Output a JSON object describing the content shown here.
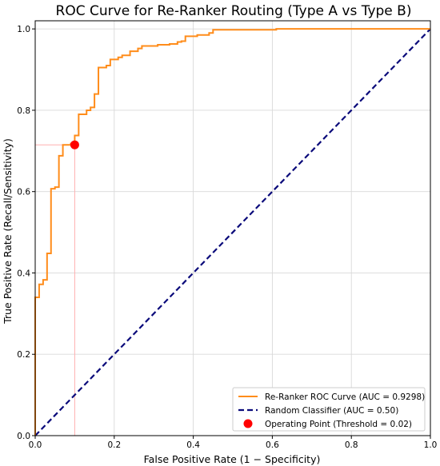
{
  "chart_data": {
    "type": "line",
    "title": "ROC Curve for Re-Ranker Routing (Type A vs Type B)",
    "xlabel": "False Positive Rate (1 − Specificity)",
    "ylabel": "True Positive Rate (Recall/Sensitivity)",
    "xlim": [
      0,
      1
    ],
    "ylim": [
      0,
      1.02
    ],
    "x_ticks": [
      "0.0",
      "0.2",
      "0.4",
      "0.6",
      "0.8",
      "1.0"
    ],
    "y_ticks": [
      "0.0",
      "0.2",
      "0.4",
      "0.6",
      "0.8",
      "1.0"
    ],
    "grid": true,
    "legend_position": "bottom-right",
    "colors": {
      "roc": "#ff8c1a",
      "random": "#0a0a7a",
      "operating_point": "#ff0000",
      "guide": "#ffb0b0",
      "grid": "#d9d9d9"
    },
    "series": [
      {
        "name": "Re-Ranker ROC Curve (AUC = 0.9298)",
        "style": "solid",
        "points": [
          [
            0.0,
            0.0
          ],
          [
            0.0,
            0.34
          ],
          [
            0.01,
            0.34
          ],
          [
            0.01,
            0.372
          ],
          [
            0.02,
            0.372
          ],
          [
            0.02,
            0.383
          ],
          [
            0.03,
            0.383
          ],
          [
            0.03,
            0.448
          ],
          [
            0.04,
            0.448
          ],
          [
            0.04,
            0.607
          ],
          [
            0.05,
            0.607
          ],
          [
            0.05,
            0.611
          ],
          [
            0.06,
            0.611
          ],
          [
            0.06,
            0.688
          ],
          [
            0.07,
            0.688
          ],
          [
            0.07,
            0.715
          ],
          [
            0.09,
            0.715
          ],
          [
            0.09,
            0.718
          ],
          [
            0.1,
            0.718
          ],
          [
            0.1,
            0.738
          ],
          [
            0.11,
            0.738
          ],
          [
            0.11,
            0.79
          ],
          [
            0.13,
            0.79
          ],
          [
            0.13,
            0.8
          ],
          [
            0.14,
            0.8
          ],
          [
            0.14,
            0.807
          ],
          [
            0.15,
            0.807
          ],
          [
            0.15,
            0.84
          ],
          [
            0.16,
            0.84
          ],
          [
            0.16,
            0.905
          ],
          [
            0.18,
            0.905
          ],
          [
            0.18,
            0.91
          ],
          [
            0.19,
            0.91
          ],
          [
            0.19,
            0.925
          ],
          [
            0.21,
            0.925
          ],
          [
            0.21,
            0.93
          ],
          [
            0.22,
            0.93
          ],
          [
            0.22,
            0.935
          ],
          [
            0.24,
            0.935
          ],
          [
            0.24,
            0.945
          ],
          [
            0.26,
            0.945
          ],
          [
            0.26,
            0.952
          ],
          [
            0.27,
            0.952
          ],
          [
            0.27,
            0.958
          ],
          [
            0.31,
            0.958
          ],
          [
            0.31,
            0.961
          ],
          [
            0.34,
            0.961
          ],
          [
            0.34,
            0.963
          ],
          [
            0.36,
            0.963
          ],
          [
            0.36,
            0.968
          ],
          [
            0.37,
            0.968
          ],
          [
            0.37,
            0.97
          ],
          [
            0.38,
            0.97
          ],
          [
            0.38,
            0.982
          ],
          [
            0.41,
            0.982
          ],
          [
            0.41,
            0.985
          ],
          [
            0.44,
            0.985
          ],
          [
            0.44,
            0.99
          ],
          [
            0.45,
            0.99
          ],
          [
            0.45,
            0.998
          ],
          [
            0.61,
            0.998
          ],
          [
            0.61,
            1.0
          ],
          [
            1.0,
            1.0
          ]
        ]
      },
      {
        "name": "Random Classifier (AUC = 0.50)",
        "style": "dashed",
        "points": [
          [
            0.0,
            0.0
          ],
          [
            1.0,
            1.0
          ]
        ]
      }
    ],
    "operating_point": {
      "name": "Operating Point (Threshold = 0.02)",
      "x": 0.1,
      "y": 0.715
    }
  }
}
